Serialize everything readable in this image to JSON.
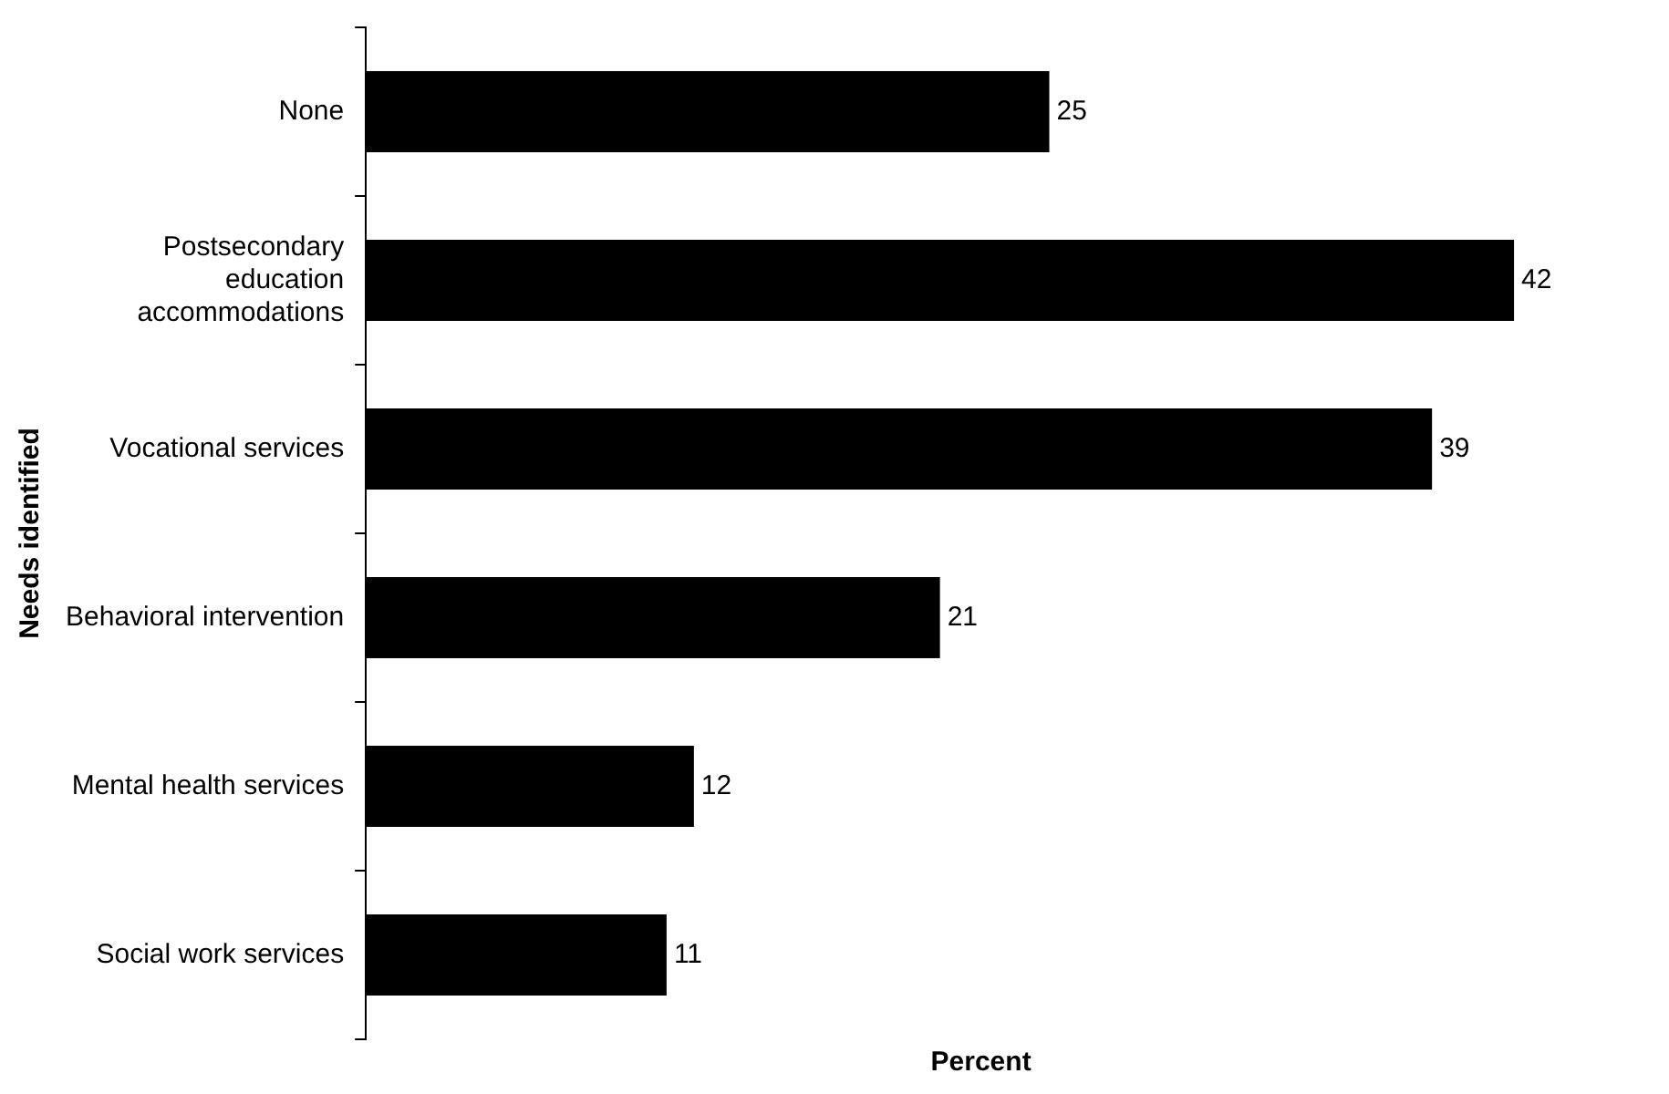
{
  "chart_data": {
    "type": "bar",
    "orientation": "horizontal",
    "xlabel": "Percent",
    "ylabel": "Needs identified",
    "categories": [
      "None",
      "Postsecondary education accommodations",
      "Vocational services",
      "Behavioral intervention",
      "Mental health services",
      "Social work services"
    ],
    "values": [
      25,
      42,
      39,
      21,
      12,
      11
    ],
    "color": "#000000",
    "data_labels": true,
    "tick_labels": "y",
    "grid": false,
    "legend": false
  }
}
